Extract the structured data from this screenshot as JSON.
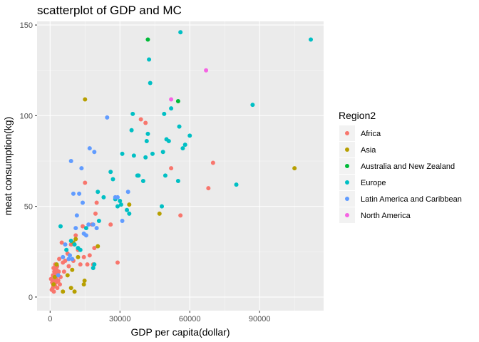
{
  "chart_data": {
    "type": "scatter",
    "title": "scatterplot of GDP and MC",
    "xlabel": "GDP per capita(dollar)",
    "ylabel": "meat consumption(kg)",
    "xlim": [
      -5600,
      117500
    ],
    "ylim": [
      -7.5,
      152
    ],
    "xticks": [
      0,
      30000,
      60000,
      90000
    ],
    "xtick_labels": [
      "0",
      "30000",
      "60000",
      "90000"
    ],
    "yticks": [
      0,
      50,
      100,
      150
    ],
    "ytick_labels": [
      "0",
      "50",
      "100",
      "150"
    ],
    "grid": true,
    "legend": {
      "title": "Region2",
      "placement": "right"
    },
    "series": [
      {
        "name": "Africa",
        "color": "#F8766D",
        "points": [
          [
            400,
            10
          ],
          [
            700,
            4
          ],
          [
            900,
            8
          ],
          [
            1100,
            5
          ],
          [
            1200,
            12
          ],
          [
            1300,
            7
          ],
          [
            1500,
            16
          ],
          [
            1600,
            3
          ],
          [
            1700,
            9
          ],
          [
            1800,
            14
          ],
          [
            2000,
            11
          ],
          [
            2100,
            6
          ],
          [
            2200,
            18
          ],
          [
            2400,
            13
          ],
          [
            2500,
            8
          ],
          [
            2600,
            10
          ],
          [
            2800,
            15
          ],
          [
            3000,
            17
          ],
          [
            3100,
            5
          ],
          [
            3300,
            12
          ],
          [
            3500,
            9
          ],
          [
            3700,
            14
          ],
          [
            3900,
            21
          ],
          [
            4200,
            7
          ],
          [
            4500,
            11
          ],
          [
            5000,
            30
          ],
          [
            5500,
            19
          ],
          [
            6000,
            14
          ],
          [
            6500,
            20
          ],
          [
            7500,
            24
          ],
          [
            8000,
            17
          ],
          [
            9000,
            29
          ],
          [
            10000,
            20
          ],
          [
            11000,
            34
          ],
          [
            12000,
            26
          ],
          [
            13000,
            18
          ],
          [
            14000,
            39
          ],
          [
            14500,
            22
          ],
          [
            15000,
            63
          ],
          [
            16000,
            18
          ],
          [
            17000,
            23
          ],
          [
            18000,
            40
          ],
          [
            18500,
            18
          ],
          [
            19000,
            27
          ],
          [
            19500,
            46
          ],
          [
            20000,
            52
          ],
          [
            26000,
            40
          ],
          [
            29000,
            19
          ],
          [
            39000,
            98
          ],
          [
            41000,
            96
          ],
          [
            52000,
            71
          ],
          [
            56000,
            45
          ],
          [
            68000,
            60
          ],
          [
            70000,
            74
          ]
        ]
      },
      {
        "name": "Asia",
        "color": "#B79F00",
        "points": [
          [
            1500,
            7
          ],
          [
            2000,
            11
          ],
          [
            2800,
            18
          ],
          [
            5500,
            3
          ],
          [
            7500,
            12
          ],
          [
            9000,
            5
          ],
          [
            9500,
            15
          ],
          [
            10000,
            30
          ],
          [
            10500,
            3
          ],
          [
            11000,
            32
          ],
          [
            12000,
            22
          ],
          [
            14500,
            7
          ],
          [
            14800,
            9
          ],
          [
            15000,
            109
          ],
          [
            20500,
            28
          ],
          [
            34000,
            51
          ],
          [
            47000,
            46
          ],
          [
            105000,
            71
          ]
        ]
      },
      {
        "name": "Australia and New Zealand",
        "color": "#00BA38",
        "points": [
          [
            42000,
            142
          ],
          [
            55000,
            108
          ]
        ]
      },
      {
        "name": "Europe",
        "color": "#00BFC4",
        "points": [
          [
            4500,
            39
          ],
          [
            7000,
            26
          ],
          [
            9000,
            31
          ],
          [
            10500,
            29
          ],
          [
            12000,
            27
          ],
          [
            13000,
            26
          ],
          [
            15500,
            38
          ],
          [
            18500,
            16
          ],
          [
            19000,
            18
          ],
          [
            20500,
            58
          ],
          [
            21000,
            42
          ],
          [
            23000,
            55
          ],
          [
            26000,
            69
          ],
          [
            27000,
            65
          ],
          [
            28000,
            54
          ],
          [
            29000,
            50
          ],
          [
            30000,
            53
          ],
          [
            30500,
            51
          ],
          [
            31000,
            79
          ],
          [
            33000,
            48
          ],
          [
            34000,
            46
          ],
          [
            35000,
            92
          ],
          [
            35500,
            101
          ],
          [
            36000,
            78
          ],
          [
            37500,
            67
          ],
          [
            38000,
            67
          ],
          [
            40000,
            64
          ],
          [
            41000,
            77
          ],
          [
            41500,
            86
          ],
          [
            42000,
            90
          ],
          [
            42500,
            131
          ],
          [
            43000,
            118
          ],
          [
            44000,
            79
          ],
          [
            48000,
            50
          ],
          [
            48500,
            80
          ],
          [
            49000,
            101
          ],
          [
            49500,
            67
          ],
          [
            50000,
            87
          ],
          [
            51000,
            86
          ],
          [
            52000,
            104
          ],
          [
            55000,
            64
          ],
          [
            55500,
            94
          ],
          [
            56000,
            146
          ],
          [
            57000,
            82
          ],
          [
            58000,
            84
          ],
          [
            60000,
            89
          ],
          [
            80000,
            62
          ],
          [
            87000,
            106
          ],
          [
            112000,
            142
          ]
        ]
      },
      {
        "name": "Latin America and Caribbean",
        "color": "#619CFF",
        "points": [
          [
            3500,
            12
          ],
          [
            5500,
            22
          ],
          [
            6500,
            29
          ],
          [
            8000,
            21
          ],
          [
            8500,
            23
          ],
          [
            9000,
            75
          ],
          [
            9500,
            21
          ],
          [
            10000,
            57
          ],
          [
            11000,
            38
          ],
          [
            11500,
            45
          ],
          [
            12500,
            57
          ],
          [
            13500,
            71
          ],
          [
            14000,
            52
          ],
          [
            14500,
            35
          ],
          [
            15500,
            34
          ],
          [
            16500,
            40
          ],
          [
            17000,
            82
          ],
          [
            18500,
            40
          ],
          [
            19000,
            80
          ],
          [
            20000,
            38
          ],
          [
            24500,
            99
          ],
          [
            28000,
            55
          ],
          [
            29000,
            55
          ],
          [
            31000,
            42
          ],
          [
            33500,
            58
          ]
        ]
      },
      {
        "name": "North America",
        "color": "#F564E3",
        "points": [
          [
            52000,
            109
          ],
          [
            67000,
            125
          ]
        ]
      }
    ]
  }
}
